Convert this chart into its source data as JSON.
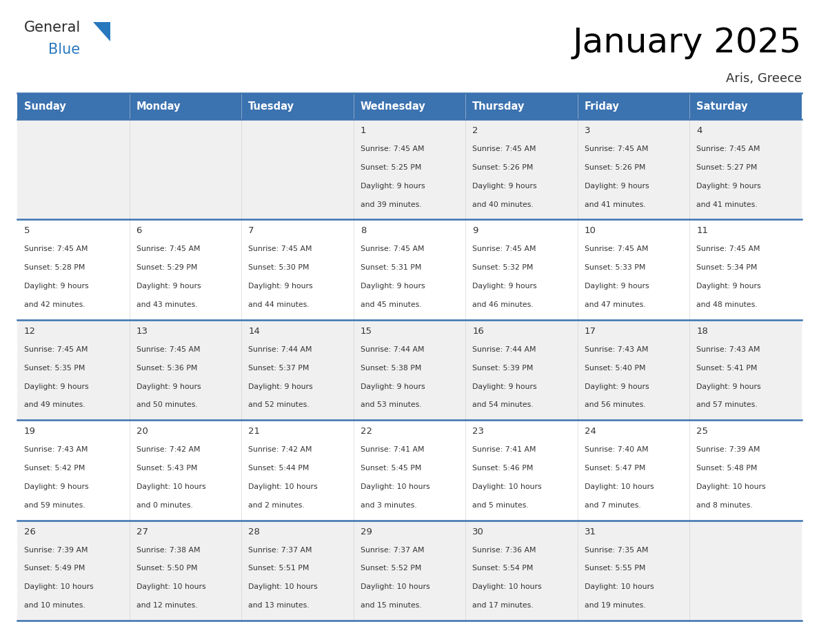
{
  "title": "January 2025",
  "subtitle": "Aris, Greece",
  "header_bg": "#3b72b0",
  "header_text_color": "#FFFFFF",
  "cell_bg_row0": "#f0f0f0",
  "cell_bg_row1": "#ffffff",
  "cell_bg_row2": "#f0f0f0",
  "cell_bg_row3": "#ffffff",
  "cell_bg_row4": "#f0f0f0",
  "border_color": "#3b72b0",
  "text_color": "#333333",
  "day_names": [
    "Sunday",
    "Monday",
    "Tuesday",
    "Wednesday",
    "Thursday",
    "Friday",
    "Saturday"
  ],
  "days": [
    {
      "row": 0,
      "col": 0,
      "num": "",
      "sunrise": "",
      "sunset": "",
      "daylight_line1": "",
      "daylight_line2": ""
    },
    {
      "row": 0,
      "col": 1,
      "num": "",
      "sunrise": "",
      "sunset": "",
      "daylight_line1": "",
      "daylight_line2": ""
    },
    {
      "row": 0,
      "col": 2,
      "num": "",
      "sunrise": "",
      "sunset": "",
      "daylight_line1": "",
      "daylight_line2": ""
    },
    {
      "row": 0,
      "col": 3,
      "num": "1",
      "sunrise": "Sunrise: 7:45 AM",
      "sunset": "Sunset: 5:25 PM",
      "daylight_line1": "Daylight: 9 hours",
      "daylight_line2": "and 39 minutes."
    },
    {
      "row": 0,
      "col": 4,
      "num": "2",
      "sunrise": "Sunrise: 7:45 AM",
      "sunset": "Sunset: 5:26 PM",
      "daylight_line1": "Daylight: 9 hours",
      "daylight_line2": "and 40 minutes."
    },
    {
      "row": 0,
      "col": 5,
      "num": "3",
      "sunrise": "Sunrise: 7:45 AM",
      "sunset": "Sunset: 5:26 PM",
      "daylight_line1": "Daylight: 9 hours",
      "daylight_line2": "and 41 minutes."
    },
    {
      "row": 0,
      "col": 6,
      "num": "4",
      "sunrise": "Sunrise: 7:45 AM",
      "sunset": "Sunset: 5:27 PM",
      "daylight_line1": "Daylight: 9 hours",
      "daylight_line2": "and 41 minutes."
    },
    {
      "row": 1,
      "col": 0,
      "num": "5",
      "sunrise": "Sunrise: 7:45 AM",
      "sunset": "Sunset: 5:28 PM",
      "daylight_line1": "Daylight: 9 hours",
      "daylight_line2": "and 42 minutes."
    },
    {
      "row": 1,
      "col": 1,
      "num": "6",
      "sunrise": "Sunrise: 7:45 AM",
      "sunset": "Sunset: 5:29 PM",
      "daylight_line1": "Daylight: 9 hours",
      "daylight_line2": "and 43 minutes."
    },
    {
      "row": 1,
      "col": 2,
      "num": "7",
      "sunrise": "Sunrise: 7:45 AM",
      "sunset": "Sunset: 5:30 PM",
      "daylight_line1": "Daylight: 9 hours",
      "daylight_line2": "and 44 minutes."
    },
    {
      "row": 1,
      "col": 3,
      "num": "8",
      "sunrise": "Sunrise: 7:45 AM",
      "sunset": "Sunset: 5:31 PM",
      "daylight_line1": "Daylight: 9 hours",
      "daylight_line2": "and 45 minutes."
    },
    {
      "row": 1,
      "col": 4,
      "num": "9",
      "sunrise": "Sunrise: 7:45 AM",
      "sunset": "Sunset: 5:32 PM",
      "daylight_line1": "Daylight: 9 hours",
      "daylight_line2": "and 46 minutes."
    },
    {
      "row": 1,
      "col": 5,
      "num": "10",
      "sunrise": "Sunrise: 7:45 AM",
      "sunset": "Sunset: 5:33 PM",
      "daylight_line1": "Daylight: 9 hours",
      "daylight_line2": "and 47 minutes."
    },
    {
      "row": 1,
      "col": 6,
      "num": "11",
      "sunrise": "Sunrise: 7:45 AM",
      "sunset": "Sunset: 5:34 PM",
      "daylight_line1": "Daylight: 9 hours",
      "daylight_line2": "and 48 minutes."
    },
    {
      "row": 2,
      "col": 0,
      "num": "12",
      "sunrise": "Sunrise: 7:45 AM",
      "sunset": "Sunset: 5:35 PM",
      "daylight_line1": "Daylight: 9 hours",
      "daylight_line2": "and 49 minutes."
    },
    {
      "row": 2,
      "col": 1,
      "num": "13",
      "sunrise": "Sunrise: 7:45 AM",
      "sunset": "Sunset: 5:36 PM",
      "daylight_line1": "Daylight: 9 hours",
      "daylight_line2": "and 50 minutes."
    },
    {
      "row": 2,
      "col": 2,
      "num": "14",
      "sunrise": "Sunrise: 7:44 AM",
      "sunset": "Sunset: 5:37 PM",
      "daylight_line1": "Daylight: 9 hours",
      "daylight_line2": "and 52 minutes."
    },
    {
      "row": 2,
      "col": 3,
      "num": "15",
      "sunrise": "Sunrise: 7:44 AM",
      "sunset": "Sunset: 5:38 PM",
      "daylight_line1": "Daylight: 9 hours",
      "daylight_line2": "and 53 minutes."
    },
    {
      "row": 2,
      "col": 4,
      "num": "16",
      "sunrise": "Sunrise: 7:44 AM",
      "sunset": "Sunset: 5:39 PM",
      "daylight_line1": "Daylight: 9 hours",
      "daylight_line2": "and 54 minutes."
    },
    {
      "row": 2,
      "col": 5,
      "num": "17",
      "sunrise": "Sunrise: 7:43 AM",
      "sunset": "Sunset: 5:40 PM",
      "daylight_line1": "Daylight: 9 hours",
      "daylight_line2": "and 56 minutes."
    },
    {
      "row": 2,
      "col": 6,
      "num": "18",
      "sunrise": "Sunrise: 7:43 AM",
      "sunset": "Sunset: 5:41 PM",
      "daylight_line1": "Daylight: 9 hours",
      "daylight_line2": "and 57 minutes."
    },
    {
      "row": 3,
      "col": 0,
      "num": "19",
      "sunrise": "Sunrise: 7:43 AM",
      "sunset": "Sunset: 5:42 PM",
      "daylight_line1": "Daylight: 9 hours",
      "daylight_line2": "and 59 minutes."
    },
    {
      "row": 3,
      "col": 1,
      "num": "20",
      "sunrise": "Sunrise: 7:42 AM",
      "sunset": "Sunset: 5:43 PM",
      "daylight_line1": "Daylight: 10 hours",
      "daylight_line2": "and 0 minutes."
    },
    {
      "row": 3,
      "col": 2,
      "num": "21",
      "sunrise": "Sunrise: 7:42 AM",
      "sunset": "Sunset: 5:44 PM",
      "daylight_line1": "Daylight: 10 hours",
      "daylight_line2": "and 2 minutes."
    },
    {
      "row": 3,
      "col": 3,
      "num": "22",
      "sunrise": "Sunrise: 7:41 AM",
      "sunset": "Sunset: 5:45 PM",
      "daylight_line1": "Daylight: 10 hours",
      "daylight_line2": "and 3 minutes."
    },
    {
      "row": 3,
      "col": 4,
      "num": "23",
      "sunrise": "Sunrise: 7:41 AM",
      "sunset": "Sunset: 5:46 PM",
      "daylight_line1": "Daylight: 10 hours",
      "daylight_line2": "and 5 minutes."
    },
    {
      "row": 3,
      "col": 5,
      "num": "24",
      "sunrise": "Sunrise: 7:40 AM",
      "sunset": "Sunset: 5:47 PM",
      "daylight_line1": "Daylight: 10 hours",
      "daylight_line2": "and 7 minutes."
    },
    {
      "row": 3,
      "col": 6,
      "num": "25",
      "sunrise": "Sunrise: 7:39 AM",
      "sunset": "Sunset: 5:48 PM",
      "daylight_line1": "Daylight: 10 hours",
      "daylight_line2": "and 8 minutes."
    },
    {
      "row": 4,
      "col": 0,
      "num": "26",
      "sunrise": "Sunrise: 7:39 AM",
      "sunset": "Sunset: 5:49 PM",
      "daylight_line1": "Daylight: 10 hours",
      "daylight_line2": "and 10 minutes."
    },
    {
      "row": 4,
      "col": 1,
      "num": "27",
      "sunrise": "Sunrise: 7:38 AM",
      "sunset": "Sunset: 5:50 PM",
      "daylight_line1": "Daylight: 10 hours",
      "daylight_line2": "and 12 minutes."
    },
    {
      "row": 4,
      "col": 2,
      "num": "28",
      "sunrise": "Sunrise: 7:37 AM",
      "sunset": "Sunset: 5:51 PM",
      "daylight_line1": "Daylight: 10 hours",
      "daylight_line2": "and 13 minutes."
    },
    {
      "row": 4,
      "col": 3,
      "num": "29",
      "sunrise": "Sunrise: 7:37 AM",
      "sunset": "Sunset: 5:52 PM",
      "daylight_line1": "Daylight: 10 hours",
      "daylight_line2": "and 15 minutes."
    },
    {
      "row": 4,
      "col": 4,
      "num": "30",
      "sunrise": "Sunrise: 7:36 AM",
      "sunset": "Sunset: 5:54 PM",
      "daylight_line1": "Daylight: 10 hours",
      "daylight_line2": "and 17 minutes."
    },
    {
      "row": 4,
      "col": 5,
      "num": "31",
      "sunrise": "Sunrise: 7:35 AM",
      "sunset": "Sunset: 5:55 PM",
      "daylight_line1": "Daylight: 10 hours",
      "daylight_line2": "and 19 minutes."
    },
    {
      "row": 4,
      "col": 6,
      "num": "",
      "sunrise": "",
      "sunset": "",
      "daylight_line1": "",
      "daylight_line2": ""
    }
  ],
  "logo_general_color": "#2a2a2a",
  "logo_blue_color": "#2878be",
  "logo_triangle_color": "#2878be",
  "fig_width": 11.88,
  "fig_height": 9.18,
  "dpi": 100
}
